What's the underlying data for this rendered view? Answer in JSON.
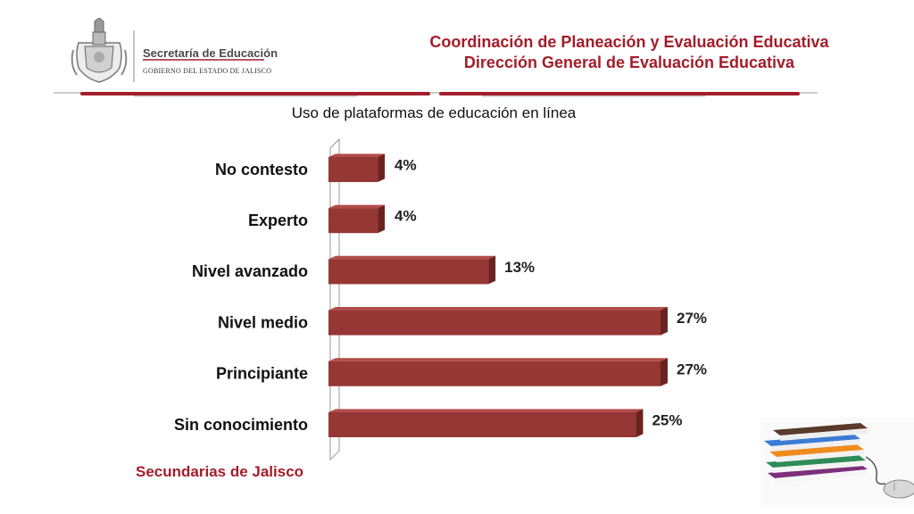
{
  "logo": {
    "line1": "Secretaría de Educación",
    "line2": "GOBIERNO DEL ESTADO DE JALISCO"
  },
  "header": {
    "line1": "Coordinación de Planeación y Evaluación Educativa",
    "line2": "Dirección General de Evaluación Educativa"
  },
  "footer": {
    "label": "Secundarias de Jalisco"
  },
  "colors": {
    "accent": "#a31d2a",
    "bar_front": "#953735",
    "bar_top": "#b24c4a",
    "bar_side": "#6b2322"
  },
  "icons": [
    "crest-icon",
    "books-icon"
  ],
  "chart_data": {
    "type": "bar",
    "orientation": "horizontal",
    "title": "Uso de plataformas de educación en línea",
    "categories": [
      "No contesto",
      "Experto",
      "Nivel avanzado",
      "Nivel medio",
      "Principiante",
      "Sin conocimiento"
    ],
    "values": [
      4,
      4,
      13,
      27,
      27,
      25
    ],
    "data_labels": [
      "4%",
      "4%",
      "13%",
      "27%",
      "27%",
      "25%"
    ],
    "unit": "%",
    "xlim": [
      0,
      27
    ],
    "grid": false,
    "legend": "none"
  }
}
